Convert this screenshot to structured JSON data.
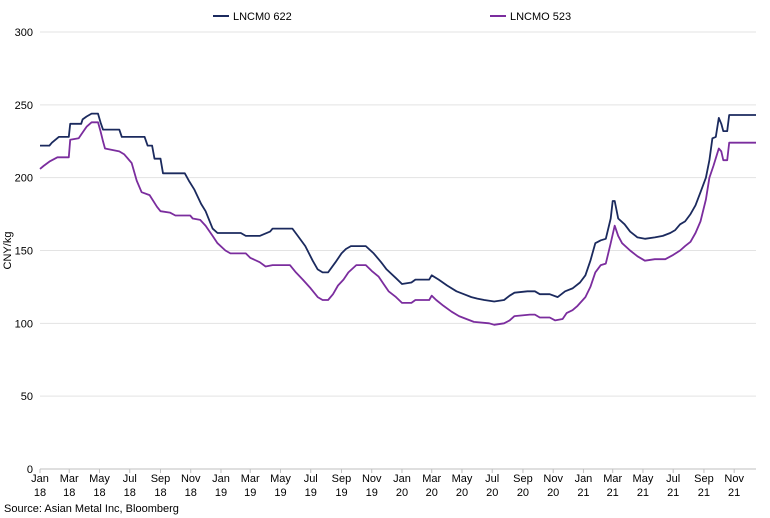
{
  "chart_data": {
    "type": "line",
    "title": "",
    "xlabel": "",
    "ylabel": "CNY/kg",
    "ylim": [
      0,
      300
    ],
    "yticks": [
      0,
      50,
      100,
      150,
      200,
      250,
      300
    ],
    "xlim": [
      "2018-01-01",
      "2021-12-15"
    ],
    "xticks": [
      {
        "date": "2018-01-01",
        "label": [
          "Jan",
          "18"
        ]
      },
      {
        "date": "2018-03-01",
        "label": [
          "Mar",
          "18"
        ]
      },
      {
        "date": "2018-05-01",
        "label": [
          "May",
          "18"
        ]
      },
      {
        "date": "2018-07-01",
        "label": [
          "Jul",
          "18"
        ]
      },
      {
        "date": "2018-09-01",
        "label": [
          "Sep",
          "18"
        ]
      },
      {
        "date": "2018-11-01",
        "label": [
          "Nov",
          "18"
        ]
      },
      {
        "date": "2019-01-01",
        "label": [
          "Jan",
          "19"
        ]
      },
      {
        "date": "2019-03-01",
        "label": [
          "Mar",
          "19"
        ]
      },
      {
        "date": "2019-05-01",
        "label": [
          "May",
          "19"
        ]
      },
      {
        "date": "2019-07-01",
        "label": [
          "Jul",
          "19"
        ]
      },
      {
        "date": "2019-09-01",
        "label": [
          "Sep",
          "19"
        ]
      },
      {
        "date": "2019-11-01",
        "label": [
          "Nov",
          "19"
        ]
      },
      {
        "date": "2020-01-01",
        "label": [
          "Jan",
          "20"
        ]
      },
      {
        "date": "2020-03-01",
        "label": [
          "Mar",
          "20"
        ]
      },
      {
        "date": "2020-05-01",
        "label": [
          "May",
          "20"
        ]
      },
      {
        "date": "2020-07-01",
        "label": [
          "Jul",
          "20"
        ]
      },
      {
        "date": "2020-09-01",
        "label": [
          "Sep",
          "20"
        ]
      },
      {
        "date": "2020-11-01",
        "label": [
          "Nov",
          "20"
        ]
      },
      {
        "date": "2021-01-01",
        "label": [
          "Jan",
          "21"
        ]
      },
      {
        "date": "2021-03-01",
        "label": [
          "Mar",
          "21"
        ]
      },
      {
        "date": "2021-05-01",
        "label": [
          "May",
          "21"
        ]
      },
      {
        "date": "2021-07-01",
        "label": [
          "Jul",
          "21"
        ]
      },
      {
        "date": "2021-09-01",
        "label": [
          "Sep",
          "21"
        ]
      },
      {
        "date": "2021-11-01",
        "label": [
          "Nov",
          "21"
        ]
      }
    ],
    "grid": "horizontal",
    "legend": "top",
    "series": [
      {
        "name": "LNCM0 622",
        "color": "#1b2a5e",
        "points": [
          [
            "2018-01-01",
            222
          ],
          [
            "2018-01-20",
            222
          ],
          [
            "2018-01-25",
            224
          ],
          [
            "2018-02-08",
            228
          ],
          [
            "2018-02-28",
            228
          ],
          [
            "2018-03-03",
            237
          ],
          [
            "2018-03-25",
            237
          ],
          [
            "2018-03-28",
            240
          ],
          [
            "2018-04-05",
            242
          ],
          [
            "2018-04-15",
            244
          ],
          [
            "2018-04-28",
            244
          ],
          [
            "2018-05-03",
            238
          ],
          [
            "2018-05-08",
            233
          ],
          [
            "2018-06-10",
            233
          ],
          [
            "2018-06-15",
            228
          ],
          [
            "2018-07-31",
            228
          ],
          [
            "2018-08-06",
            222
          ],
          [
            "2018-08-15",
            222
          ],
          [
            "2018-08-20",
            213
          ],
          [
            "2018-09-01",
            213
          ],
          [
            "2018-09-06",
            203
          ],
          [
            "2018-10-20",
            203
          ],
          [
            "2018-10-28",
            198
          ],
          [
            "2018-11-08",
            192
          ],
          [
            "2018-11-22",
            182
          ],
          [
            "2018-12-01",
            177
          ],
          [
            "2018-12-15",
            165
          ],
          [
            "2018-12-25",
            162
          ],
          [
            "2019-02-10",
            162
          ],
          [
            "2019-02-20",
            160
          ],
          [
            "2019-03-20",
            160
          ],
          [
            "2019-04-10",
            163
          ],
          [
            "2019-04-15",
            165
          ],
          [
            "2019-05-25",
            165
          ],
          [
            "2019-06-05",
            160
          ],
          [
            "2019-06-20",
            153
          ],
          [
            "2019-07-05",
            143
          ],
          [
            "2019-07-15",
            137
          ],
          [
            "2019-07-25",
            135
          ],
          [
            "2019-08-05",
            135
          ],
          [
            "2019-08-20",
            142
          ],
          [
            "2019-09-01",
            148
          ],
          [
            "2019-09-10",
            151
          ],
          [
            "2019-09-20",
            153
          ],
          [
            "2019-10-20",
            153
          ],
          [
            "2019-11-05",
            148
          ],
          [
            "2019-11-20",
            142
          ],
          [
            "2019-12-01",
            137
          ],
          [
            "2019-12-20",
            131
          ],
          [
            "2020-01-01",
            127
          ],
          [
            "2020-01-20",
            128
          ],
          [
            "2020-01-28",
            130
          ],
          [
            "2020-02-25",
            130
          ],
          [
            "2020-03-01",
            133
          ],
          [
            "2020-03-15",
            130
          ],
          [
            "2020-04-01",
            126
          ],
          [
            "2020-04-20",
            122
          ],
          [
            "2020-05-05",
            120
          ],
          [
            "2020-05-20",
            118
          ],
          [
            "2020-06-01",
            117
          ],
          [
            "2020-06-15",
            116
          ],
          [
            "2020-07-05",
            115
          ],
          [
            "2020-07-25",
            116
          ],
          [
            "2020-08-05",
            119
          ],
          [
            "2020-08-15",
            121
          ],
          [
            "2020-09-10",
            122
          ],
          [
            "2020-09-25",
            122
          ],
          [
            "2020-10-05",
            120
          ],
          [
            "2020-10-25",
            120
          ],
          [
            "2020-11-10",
            118
          ],
          [
            "2020-11-25",
            122
          ],
          [
            "2020-12-10",
            124
          ],
          [
            "2020-12-25",
            128
          ],
          [
            "2021-01-05",
            133
          ],
          [
            "2021-01-15",
            143
          ],
          [
            "2021-01-25",
            155
          ],
          [
            "2021-02-05",
            157
          ],
          [
            "2021-02-15",
            158
          ],
          [
            "2021-02-25",
            172
          ],
          [
            "2021-03-01",
            184
          ],
          [
            "2021-03-05",
            184
          ],
          [
            "2021-03-12",
            172
          ],
          [
            "2021-03-25",
            168
          ],
          [
            "2021-04-05",
            163
          ],
          [
            "2021-04-20",
            159
          ],
          [
            "2021-05-05",
            158
          ],
          [
            "2021-05-25",
            159
          ],
          [
            "2021-06-10",
            160
          ],
          [
            "2021-06-25",
            162
          ],
          [
            "2021-07-05",
            164
          ],
          [
            "2021-07-15",
            168
          ],
          [
            "2021-07-25",
            170
          ],
          [
            "2021-08-05",
            175
          ],
          [
            "2021-08-15",
            181
          ],
          [
            "2021-08-25",
            190
          ],
          [
            "2021-09-05",
            200
          ],
          [
            "2021-09-12",
            212
          ],
          [
            "2021-09-18",
            227
          ],
          [
            "2021-09-25",
            228
          ],
          [
            "2021-10-01",
            241
          ],
          [
            "2021-10-06",
            237
          ],
          [
            "2021-10-10",
            232
          ],
          [
            "2021-10-18",
            232
          ],
          [
            "2021-10-22",
            243
          ],
          [
            "2021-12-15",
            243
          ]
        ]
      },
      {
        "name": "LNCMO 523",
        "color": "#7b2d9e",
        "points": [
          [
            "2018-01-01",
            206
          ],
          [
            "2018-01-08",
            208
          ],
          [
            "2018-01-20",
            211
          ],
          [
            "2018-02-05",
            214
          ],
          [
            "2018-02-28",
            214
          ],
          [
            "2018-03-03",
            226
          ],
          [
            "2018-03-20",
            227
          ],
          [
            "2018-03-28",
            231
          ],
          [
            "2018-04-05",
            235
          ],
          [
            "2018-04-15",
            238
          ],
          [
            "2018-04-28",
            238
          ],
          [
            "2018-05-03",
            232
          ],
          [
            "2018-05-08",
            225
          ],
          [
            "2018-05-12",
            220
          ],
          [
            "2018-06-10",
            218
          ],
          [
            "2018-06-20",
            216
          ],
          [
            "2018-07-05",
            210
          ],
          [
            "2018-07-15",
            198
          ],
          [
            "2018-07-25",
            190
          ],
          [
            "2018-08-10",
            188
          ],
          [
            "2018-08-25",
            180
          ],
          [
            "2018-09-01",
            177
          ],
          [
            "2018-09-20",
            176
          ],
          [
            "2018-10-01",
            174
          ],
          [
            "2018-10-31",
            174
          ],
          [
            "2018-11-05",
            172
          ],
          [
            "2018-11-20",
            171
          ],
          [
            "2018-12-01",
            167
          ],
          [
            "2018-12-15",
            160
          ],
          [
            "2018-12-25",
            155
          ],
          [
            "2019-01-10",
            150
          ],
          [
            "2019-01-20",
            148
          ],
          [
            "2019-02-20",
            148
          ],
          [
            "2019-03-01",
            145
          ],
          [
            "2019-03-20",
            142
          ],
          [
            "2019-04-01",
            139
          ],
          [
            "2019-04-15",
            140
          ],
          [
            "2019-05-20",
            140
          ],
          [
            "2019-06-01",
            135
          ],
          [
            "2019-06-15",
            130
          ],
          [
            "2019-07-01",
            124
          ],
          [
            "2019-07-15",
            118
          ],
          [
            "2019-07-25",
            116
          ],
          [
            "2019-08-05",
            116
          ],
          [
            "2019-08-15",
            120
          ],
          [
            "2019-08-25",
            126
          ],
          [
            "2019-09-05",
            130
          ],
          [
            "2019-09-15",
            135
          ],
          [
            "2019-10-01",
            140
          ],
          [
            "2019-10-20",
            140
          ],
          [
            "2019-11-01",
            136
          ],
          [
            "2019-11-15",
            132
          ],
          [
            "2019-11-25",
            127
          ],
          [
            "2019-12-05",
            122
          ],
          [
            "2019-12-20",
            118
          ],
          [
            "2020-01-01",
            114
          ],
          [
            "2020-01-20",
            114
          ],
          [
            "2020-01-28",
            116
          ],
          [
            "2020-02-25",
            116
          ],
          [
            "2020-03-01",
            119
          ],
          [
            "2020-03-10",
            116
          ],
          [
            "2020-03-25",
            112
          ],
          [
            "2020-04-10",
            108
          ],
          [
            "2020-04-25",
            105
          ],
          [
            "2020-05-10",
            103
          ],
          [
            "2020-05-25",
            101
          ],
          [
            "2020-06-25",
            100
          ],
          [
            "2020-07-05",
            99
          ],
          [
            "2020-07-25",
            100
          ],
          [
            "2020-08-05",
            102
          ],
          [
            "2020-08-15",
            105
          ],
          [
            "2020-09-15",
            106
          ],
          [
            "2020-09-25",
            106
          ],
          [
            "2020-10-05",
            104
          ],
          [
            "2020-10-25",
            104
          ],
          [
            "2020-11-05",
            102
          ],
          [
            "2020-11-20",
            103
          ],
          [
            "2020-11-28",
            107
          ],
          [
            "2020-12-10",
            109
          ],
          [
            "2020-12-20",
            112
          ],
          [
            "2021-01-05",
            118
          ],
          [
            "2021-01-15",
            125
          ],
          [
            "2021-01-25",
            135
          ],
          [
            "2021-02-05",
            140
          ],
          [
            "2021-02-15",
            141
          ],
          [
            "2021-02-25",
            155
          ],
          [
            "2021-03-05",
            167
          ],
          [
            "2021-03-12",
            160
          ],
          [
            "2021-03-20",
            155
          ],
          [
            "2021-04-05",
            150
          ],
          [
            "2021-04-20",
            146
          ],
          [
            "2021-05-05",
            143
          ],
          [
            "2021-05-25",
            144
          ],
          [
            "2021-06-15",
            144
          ],
          [
            "2021-07-01",
            147
          ],
          [
            "2021-07-15",
            150
          ],
          [
            "2021-07-25",
            153
          ],
          [
            "2021-08-05",
            156
          ],
          [
            "2021-08-15",
            162
          ],
          [
            "2021-08-25",
            170
          ],
          [
            "2021-09-05",
            185
          ],
          [
            "2021-09-12",
            200
          ],
          [
            "2021-09-20",
            208
          ],
          [
            "2021-10-01",
            220
          ],
          [
            "2021-10-06",
            218
          ],
          [
            "2021-10-10",
            212
          ],
          [
            "2021-10-18",
            212
          ],
          [
            "2021-10-22",
            224
          ],
          [
            "2021-12-15",
            224
          ]
        ]
      }
    ]
  },
  "source": "Source: Asian Metal Inc, Bloomberg"
}
